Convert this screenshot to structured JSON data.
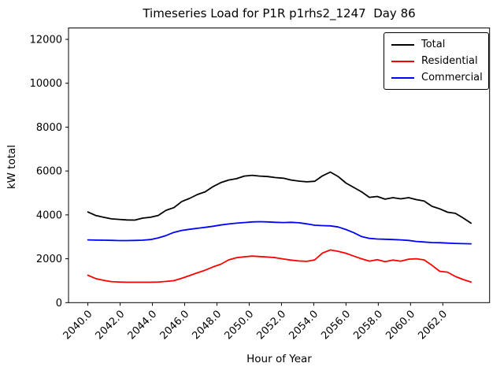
{
  "chart_data": {
    "type": "line",
    "title": "Timeseries Load for P1R p1rhs2_1247  Day 86",
    "xlabel": "Hour of Year",
    "ylabel": "kW total",
    "xlim": [
      2038.8,
      2064.9
    ],
    "ylim": [
      0,
      12520
    ],
    "grid": false,
    "legend_position": "upper right",
    "xticks": [
      2040,
      2042,
      2044,
      2046,
      2048,
      2050,
      2052,
      2054,
      2056,
      2058,
      2060,
      2062
    ],
    "xtick_labels": [
      "2040.0",
      "2042.0",
      "2044.0",
      "2046.0",
      "2048.0",
      "2050.0",
      "2052.0",
      "2054.0",
      "2056.0",
      "2058.0",
      "2060.0",
      "2062.0"
    ],
    "yticks": [
      0,
      2000,
      4000,
      6000,
      8000,
      10000,
      12000
    ],
    "ytick_labels": [
      "0",
      "2000",
      "4000",
      "6000",
      "8000",
      "10000",
      "12000"
    ],
    "x": [
      2040.0,
      2040.48,
      2040.97,
      2041.45,
      2041.94,
      2042.42,
      2042.91,
      2043.39,
      2043.88,
      2044.36,
      2044.85,
      2045.33,
      2045.82,
      2046.3,
      2046.79,
      2047.27,
      2047.76,
      2048.24,
      2048.73,
      2049.21,
      2049.69,
      2050.18,
      2050.66,
      2051.15,
      2051.63,
      2052.12,
      2052.6,
      2053.09,
      2053.57,
      2054.06,
      2054.54,
      2055.03,
      2055.51,
      2056.0,
      2056.48,
      2056.97,
      2057.45,
      2057.94,
      2058.42,
      2058.91,
      2059.39,
      2059.88,
      2060.36,
      2060.84,
      2061.33,
      2061.81,
      2062.3,
      2062.78,
      2063.27,
      2063.75
    ],
    "series": [
      {
        "name": "Total",
        "color": "#000000",
        "values": [
          4130,
          3975,
          3890,
          3820,
          3795,
          3770,
          3760,
          3850,
          3890,
          3975,
          4210,
          4330,
          4610,
          4750,
          4930,
          5050,
          5290,
          5470,
          5590,
          5650,
          5770,
          5805,
          5770,
          5745,
          5700,
          5670,
          5590,
          5540,
          5505,
          5530,
          5780,
          5950,
          5750,
          5450,
          5250,
          5050,
          4800,
          4840,
          4715,
          4785,
          4730,
          4785,
          4695,
          4630,
          4390,
          4275,
          4120,
          4070,
          3855,
          3620
        ]
      },
      {
        "name": "Residential",
        "color": "#ff0000",
        "values": [
          1250,
          1100,
          1015,
          960,
          940,
          930,
          930,
          930,
          930,
          940,
          965,
          1000,
          1110,
          1230,
          1360,
          1480,
          1630,
          1750,
          1950,
          2050,
          2090,
          2120,
          2100,
          2080,
          2050,
          1990,
          1940,
          1900,
          1880,
          1950,
          2260,
          2400,
          2340,
          2250,
          2120,
          2000,
          1890,
          1960,
          1870,
          1940,
          1890,
          1980,
          2000,
          1950,
          1700,
          1430,
          1390,
          1190,
          1050,
          940
        ]
      },
      {
        "name": "Commercial",
        "color": "#0000ff",
        "values": [
          2860,
          2850,
          2845,
          2840,
          2830,
          2830,
          2835,
          2845,
          2875,
          2950,
          3060,
          3200,
          3290,
          3340,
          3390,
          3430,
          3480,
          3540,
          3585,
          3620,
          3650,
          3680,
          3690,
          3680,
          3660,
          3650,
          3660,
          3640,
          3590,
          3530,
          3510,
          3500,
          3450,
          3330,
          3190,
          3010,
          2930,
          2900,
          2890,
          2875,
          2860,
          2835,
          2790,
          2765,
          2740,
          2730,
          2715,
          2700,
          2690,
          2680
        ]
      }
    ]
  }
}
